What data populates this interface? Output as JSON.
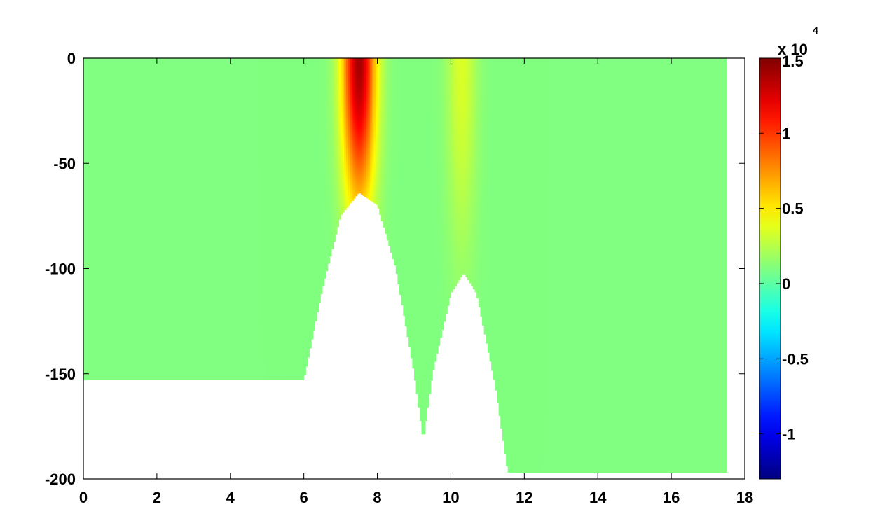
{
  "chart_data": {
    "type": "heatmap",
    "title": "",
    "xlabel": "",
    "ylabel": "",
    "xlim": [
      0,
      18
    ],
    "ylim": [
      -200,
      0
    ],
    "data_xlim": [
      0,
      17.5
    ],
    "x_ticks": [
      0,
      2,
      4,
      6,
      8,
      10,
      12,
      14,
      16,
      18
    ],
    "y_ticks": [
      0,
      -50,
      -100,
      -150,
      -200
    ],
    "colormap": "jet",
    "clim": [
      -13000,
      15000
    ],
    "background_value": 1000,
    "bathymetry": {
      "x": [
        0,
        6.0,
        6.5,
        7.0,
        7.5,
        8.0,
        8.5,
        9.0,
        9.25,
        9.5,
        10.0,
        10.35,
        10.7,
        11.2,
        11.55,
        12.0,
        17.5
      ],
      "depth": [
        -153,
        -153,
        -110,
        -75,
        -64,
        -70,
        -100,
        -150,
        -182,
        -150,
        -112,
        -102,
        -112,
        -155,
        -197,
        -197,
        -197
      ]
    },
    "hotspots": [
      {
        "x_center": 7.5,
        "x_width": 0.45,
        "z_top": 0,
        "z_decay": 70,
        "peak_value": 14000
      },
      {
        "x_center": 10.3,
        "x_width": 0.4,
        "z_top": 0,
        "z_decay": 90,
        "peak_value": 3500
      }
    ],
    "colorbar": {
      "exponent_label": "x 10",
      "exponent": "4",
      "ticks": [
        1.5,
        1,
        0.5,
        0,
        -0.5,
        -1
      ],
      "tick_labels": [
        "1.5",
        "1",
        "0.5",
        "0",
        "-0.5",
        "-1"
      ],
      "range": [
        -1.3,
        1.5
      ]
    }
  }
}
